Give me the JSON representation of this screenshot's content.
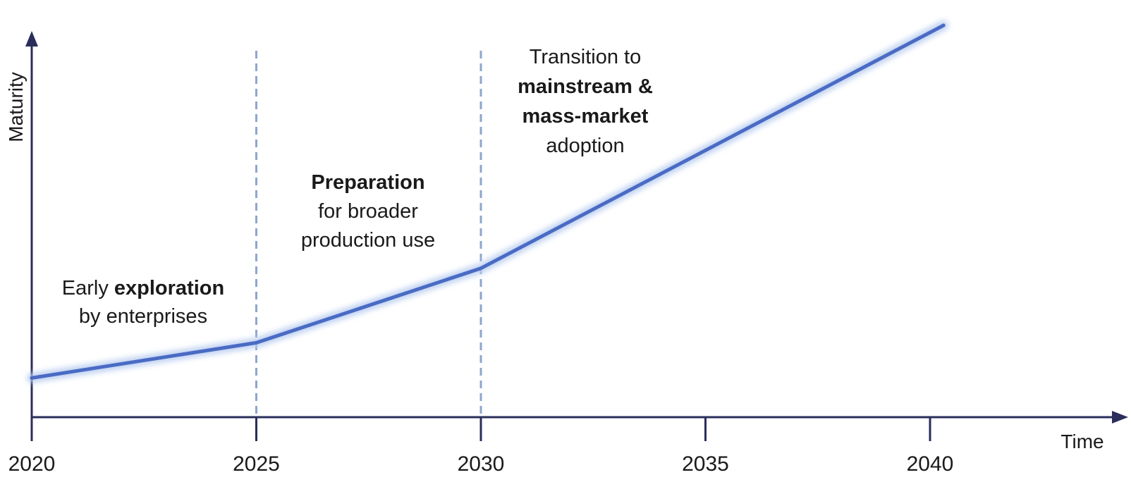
{
  "chart_data": {
    "type": "line",
    "xlabel": "Time",
    "ylabel": "Maturity",
    "x_ticks": [
      2020,
      2025,
      2030,
      2035,
      2040
    ],
    "xlim": [
      2020,
      2044
    ],
    "ylim": [
      0,
      10
    ],
    "grid": false,
    "series": [
      {
        "x": [
          2020,
          2025,
          2030,
          2040.3
        ],
        "y": [
          1.0,
          1.9,
          3.8,
          10.0
        ]
      }
    ],
    "color": "#4a6bc4",
    "phase_dividers": [
      2025,
      2030
    ],
    "annotations": [
      {
        "id": "early",
        "lines": [
          [
            {
              "text": "Early ",
              "bold": false
            },
            {
              "text": "exploration",
              "bold": true
            }
          ],
          [
            {
              "text": "by enterprises",
              "bold": false
            }
          ]
        ]
      },
      {
        "id": "prep",
        "lines": [
          [
            {
              "text": "Preparation",
              "bold": true
            }
          ],
          [
            {
              "text": "for broader",
              "bold": false
            }
          ],
          [
            {
              "text": "production use",
              "bold": false
            }
          ]
        ]
      },
      {
        "id": "mainstream",
        "lines": [
          [
            {
              "text": "Transition to",
              "bold": false
            }
          ],
          [
            {
              "text": "mainstream &",
              "bold": true
            }
          ],
          [
            {
              "text": "mass-market",
              "bold": true
            }
          ],
          [
            {
              "text": "adoption",
              "bold": false
            }
          ]
        ]
      }
    ]
  }
}
